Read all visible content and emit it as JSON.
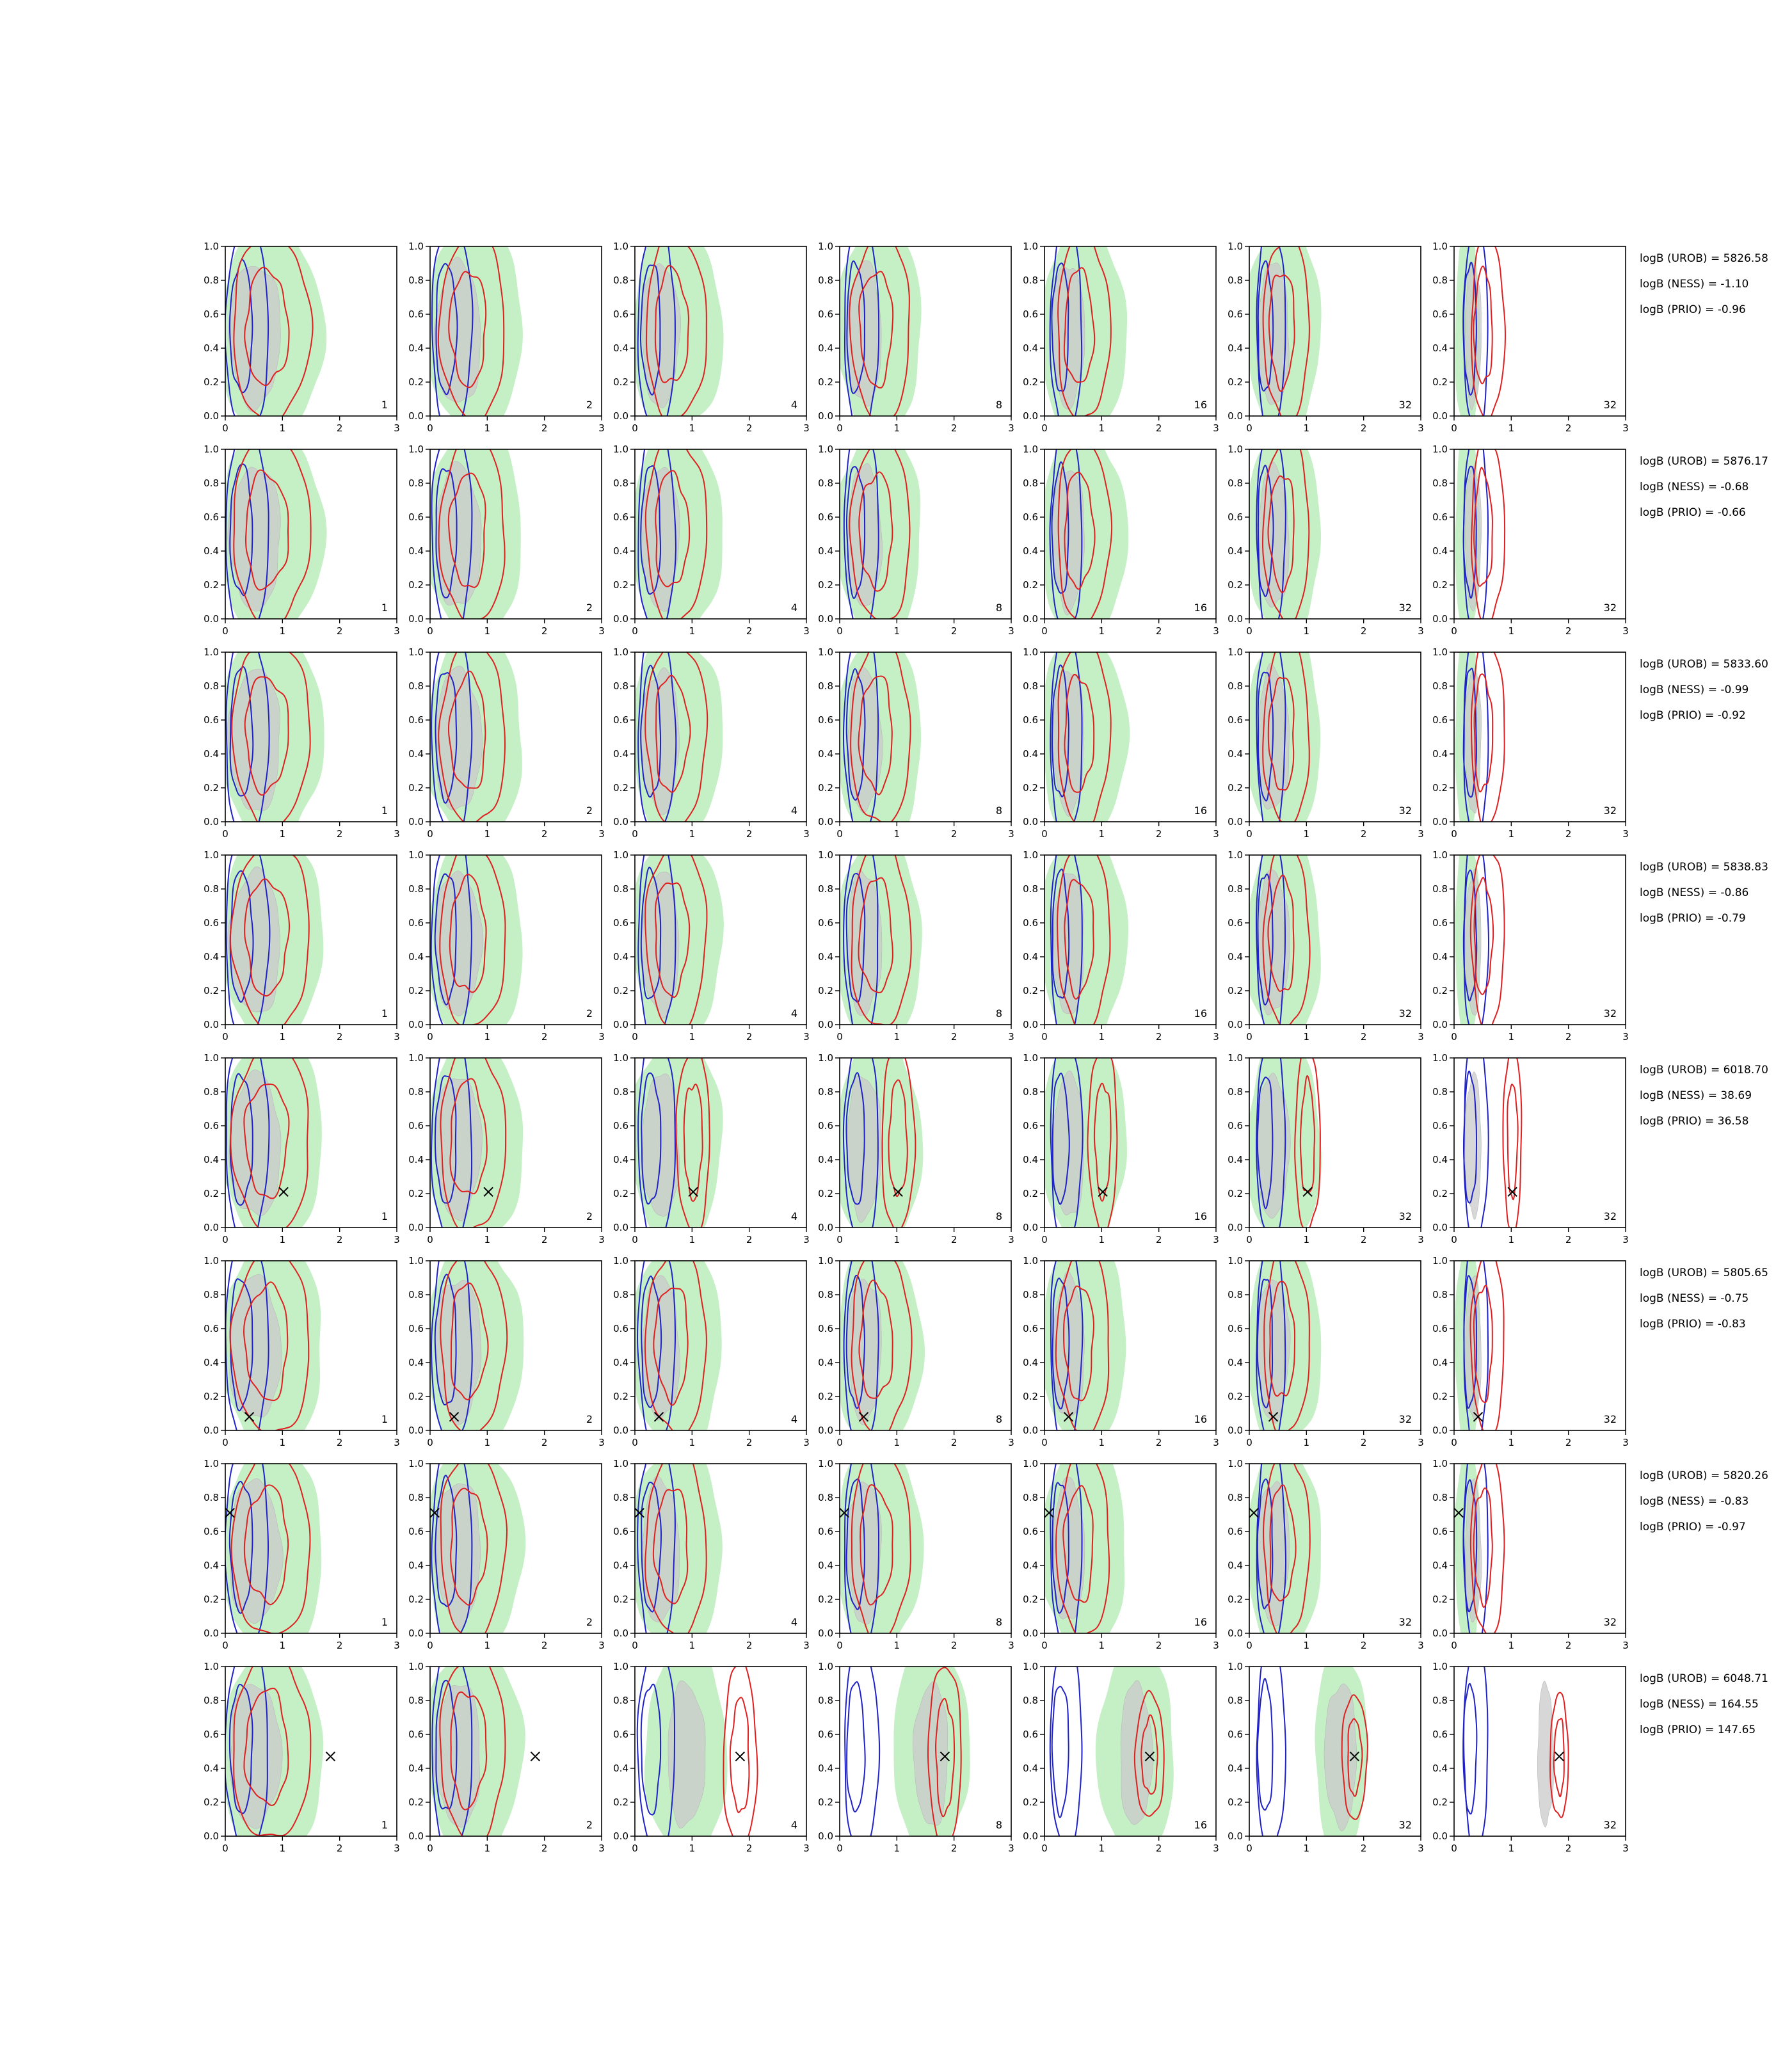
{
  "chart_data": {
    "type": "contour",
    "layout": {
      "rows": 8,
      "cols": 7
    },
    "xlim": [
      0,
      3
    ],
    "ylim": [
      0,
      1
    ],
    "x_ticks": [
      0,
      1,
      2,
      3
    ],
    "y_ticks": [
      0.0,
      0.2,
      0.4,
      0.6,
      0.8,
      1.0
    ],
    "x_tick_labels": [
      "0",
      "1",
      "2",
      "3"
    ],
    "y_tick_labels": [
      "0.0",
      "0.2",
      "0.4",
      "0.6",
      "0.8",
      "1.0"
    ],
    "column_labels": [
      "1",
      "2",
      "4",
      "8",
      "16",
      "32",
      "32"
    ],
    "colors": {
      "blue": "#1f22c8",
      "red": "#e02020",
      "green_fill": "#c5efc5",
      "gray_fill": "#c9c9c9"
    },
    "rows": [
      {
        "marker": null,
        "metrics": [
          "logB (UROB) = 5826.58",
          "logB (NESS) = -1.10",
          "logB (PRIO) = -0.96"
        ]
      },
      {
        "marker": null,
        "metrics": [
          "logB (UROB) = 5876.17",
          "logB (NESS) = -0.68",
          "logB (PRIO) = -0.66"
        ]
      },
      {
        "marker": null,
        "metrics": [
          "logB (UROB) = 5833.60",
          "logB (NESS) = -0.99",
          "logB (PRIO) = -0.92"
        ]
      },
      {
        "marker": null,
        "metrics": [
          "logB (UROB) = 5838.83",
          "logB (NESS) = -0.86",
          "logB (PRIO) = -0.79"
        ]
      },
      {
        "marker": {
          "x": 1.02,
          "y": 0.21
        },
        "metrics": [
          "logB (UROB) = 6018.70",
          "logB (NESS) = 38.69",
          "logB (PRIO) = 36.58"
        ]
      },
      {
        "marker": {
          "x": 0.42,
          "y": 0.08
        },
        "metrics": [
          "logB (UROB) = 5805.65",
          "logB (NESS) = -0.75",
          "logB (PRIO) = -0.83"
        ]
      },
      {
        "marker": {
          "x": 0.08,
          "y": 0.71
        },
        "metrics": [
          "logB (UROB) = 5820.26",
          "logB (NESS) = -0.83",
          "logB (PRIO) = -0.97"
        ]
      },
      {
        "marker": {
          "x": 1.84,
          "y": 0.47
        },
        "metrics": [
          "logB (UROB) = 6048.71",
          "logB (NESS) = 164.55",
          "logB (PRIO) = 147.65"
        ]
      }
    ]
  }
}
